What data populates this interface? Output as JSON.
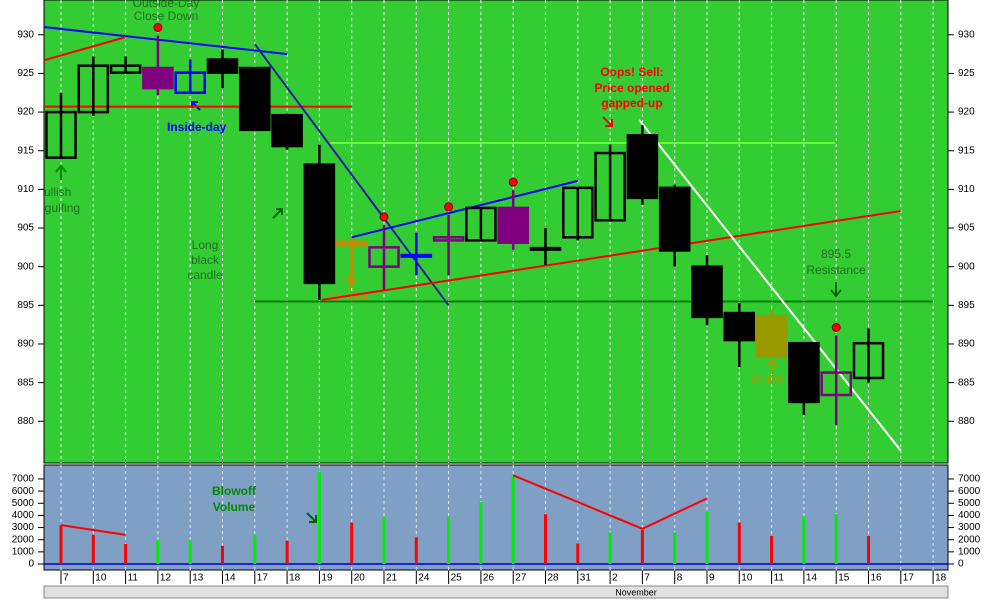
{
  "chart_data": {
    "type": "candlestick",
    "categories": [
      "7",
      "10",
      "11",
      "12",
      "13",
      "14",
      "17",
      "18",
      "19",
      "20",
      "21",
      "24",
      "25",
      "26",
      "27",
      "28",
      "31",
      "2",
      "7",
      "8",
      "9",
      "10",
      "11",
      "14",
      "15",
      "16",
      "17",
      "18"
    ],
    "open": [
      914.1,
      920.0,
      925.1,
      925.7,
      922.5,
      926.8,
      925.7,
      919.6,
      913.2,
      903.2,
      900.0,
      901.5,
      903.4,
      903.4,
      907.6,
      902.4,
      903.8,
      906.0,
      917.0,
      910.2,
      900.0,
      894.0,
      893.6,
      890.1,
      883.4,
      885.6,
      null,
      null
    ],
    "high": [
      922.5,
      927.2,
      927.2,
      929.9,
      926.8,
      928.1,
      925.7,
      919.8,
      915.8,
      903.7,
      905.4,
      904.4,
      906.7,
      907.6,
      909.9,
      905.0,
      910.2,
      915.8,
      918.3,
      910.6,
      901.5,
      895.3,
      894.4,
      890.1,
      891.1,
      892.0,
      null,
      null
    ],
    "low": [
      914.1,
      919.5,
      925.1,
      922.2,
      922.5,
      923.1,
      917.7,
      915.1,
      895.7,
      897.6,
      897.0,
      898.9,
      898.9,
      903.4,
      902.2,
      900.2,
      903.4,
      906.0,
      908.0,
      900.0,
      892.4,
      887.0,
      888.4,
      880.8,
      879.5,
      885.0,
      null,
      null
    ],
    "close": [
      920.0,
      926.0,
      926.0,
      923.1,
      925.1,
      925.1,
      917.7,
      915.6,
      897.9,
      902.8,
      902.5,
      901.5,
      903.8,
      907.6,
      903.1,
      902.4,
      910.2,
      914.7,
      908.9,
      902.1,
      893.5,
      890.5,
      888.4,
      882.5,
      886.3,
      890.1,
      null,
      null
    ],
    "colors": [
      "#000000",
      "#000000",
      "#000000",
      "#800080",
      "#0000ff",
      "#000000",
      "#000000",
      "#000000",
      "#000000",
      "#cc8800",
      "#800080",
      "#0000ff",
      "#800080",
      "#000000",
      "#800080",
      "#000000",
      "#000000",
      "#000000",
      "#000000",
      "#000000",
      "#000000",
      "#000000",
      "#999900",
      "#000000",
      "#800080",
      "#000000",
      null,
      null
    ],
    "ylim": [
      874.6,
      934.5
    ],
    "yticks": [
      880,
      885,
      890,
      895,
      900,
      905,
      910,
      915,
      920,
      925,
      930
    ],
    "trendlines": [
      {
        "color": "#0000ff",
        "x": [
          -0.53,
          7
        ],
        "y": [
          931.0,
          927.5
        ]
      },
      {
        "color": "#ff0000",
        "x": [
          -0.53,
          2
        ],
        "y": [
          926.7,
          929.7
        ]
      },
      {
        "color": "#ff0000",
        "x": [
          -0.53,
          9
        ],
        "y": [
          920.7,
          920.7
        ]
      },
      {
        "color": "#2020a0",
        "x": [
          6,
          12
        ],
        "y": [
          928.8,
          895.0
        ]
      },
      {
        "color": "#66ff33",
        "x": [
          8.33,
          23.96
        ],
        "y": [
          916.0,
          916.0
        ]
      },
      {
        "color": "#0000ff",
        "x": [
          9,
          16
        ],
        "y": [
          903.8,
          911.1
        ]
      },
      {
        "color": "#ff0000",
        "x": [
          8.08,
          26
        ],
        "y": [
          895.7,
          907.2
        ]
      },
      {
        "color": "#ffffff",
        "x": [
          17.9,
          26
        ],
        "y": [
          919.0,
          876.2
        ]
      }
    ],
    "resistance_level": 895.5,
    "resistance_label": "Resistance",
    "signal_days": [
      3,
      10,
      12,
      14,
      24
    ],
    "volume": {
      "values": [
        3200,
        2400,
        1650,
        2000,
        2000,
        1500,
        2400,
        1900,
        7600,
        3400,
        3900,
        2200,
        3900,
        5100,
        7300,
        4100,
        1700,
        2600,
        2800,
        2600,
        4300,
        3400,
        2300,
        3900,
        4100,
        2300,
        null,
        null
      ],
      "colors": [
        "#ff0000",
        "#ff0000",
        "#ff0000",
        "#00ee00",
        "#00ee00",
        "#ff0000",
        "#00ee00",
        "#ff0000",
        "#00ee00",
        "#ff0000",
        "#00ee00",
        "#ff0000",
        "#00ee00",
        "#00ee00",
        "#00ee00",
        "#ff0000",
        "#ff0000",
        "#00ee00",
        "#ff0000",
        "#00ee00",
        "#00ee00",
        "#ff0000",
        "#ff0000",
        "#00ee00",
        "#00ee00",
        "#ff0000",
        null,
        null
      ],
      "ylim": [
        0,
        8150
      ],
      "yticks": [
        0,
        1000,
        2000,
        3000,
        4000,
        5000,
        6000,
        7000
      ],
      "trendlines": [
        {
          "color": "#ff0000",
          "x": [
            0,
            2
          ],
          "y": [
            3200,
            2400
          ]
        },
        {
          "color": "#ff0000",
          "x": [
            14,
            18,
            20
          ],
          "y": [
            7300,
            2900,
            5400
          ]
        }
      ]
    },
    "month_label": "November",
    "annotations": {
      "outside_day": [
        "Outside-Day",
        "Close Down"
      ],
      "inside_day": "Inside-day",
      "bullish": [
        "Bullish",
        "Engulfing"
      ],
      "long_black": [
        "Long",
        "black",
        "candle"
      ],
      "id_nr4": "ID-NR4",
      "id_nr4_2": "ID-NR4",
      "oops": [
        "Oops! Sell:",
        "Price opened",
        "gapped-up"
      ],
      "blowoff": [
        "Blowoff",
        "Volume"
      ]
    }
  }
}
